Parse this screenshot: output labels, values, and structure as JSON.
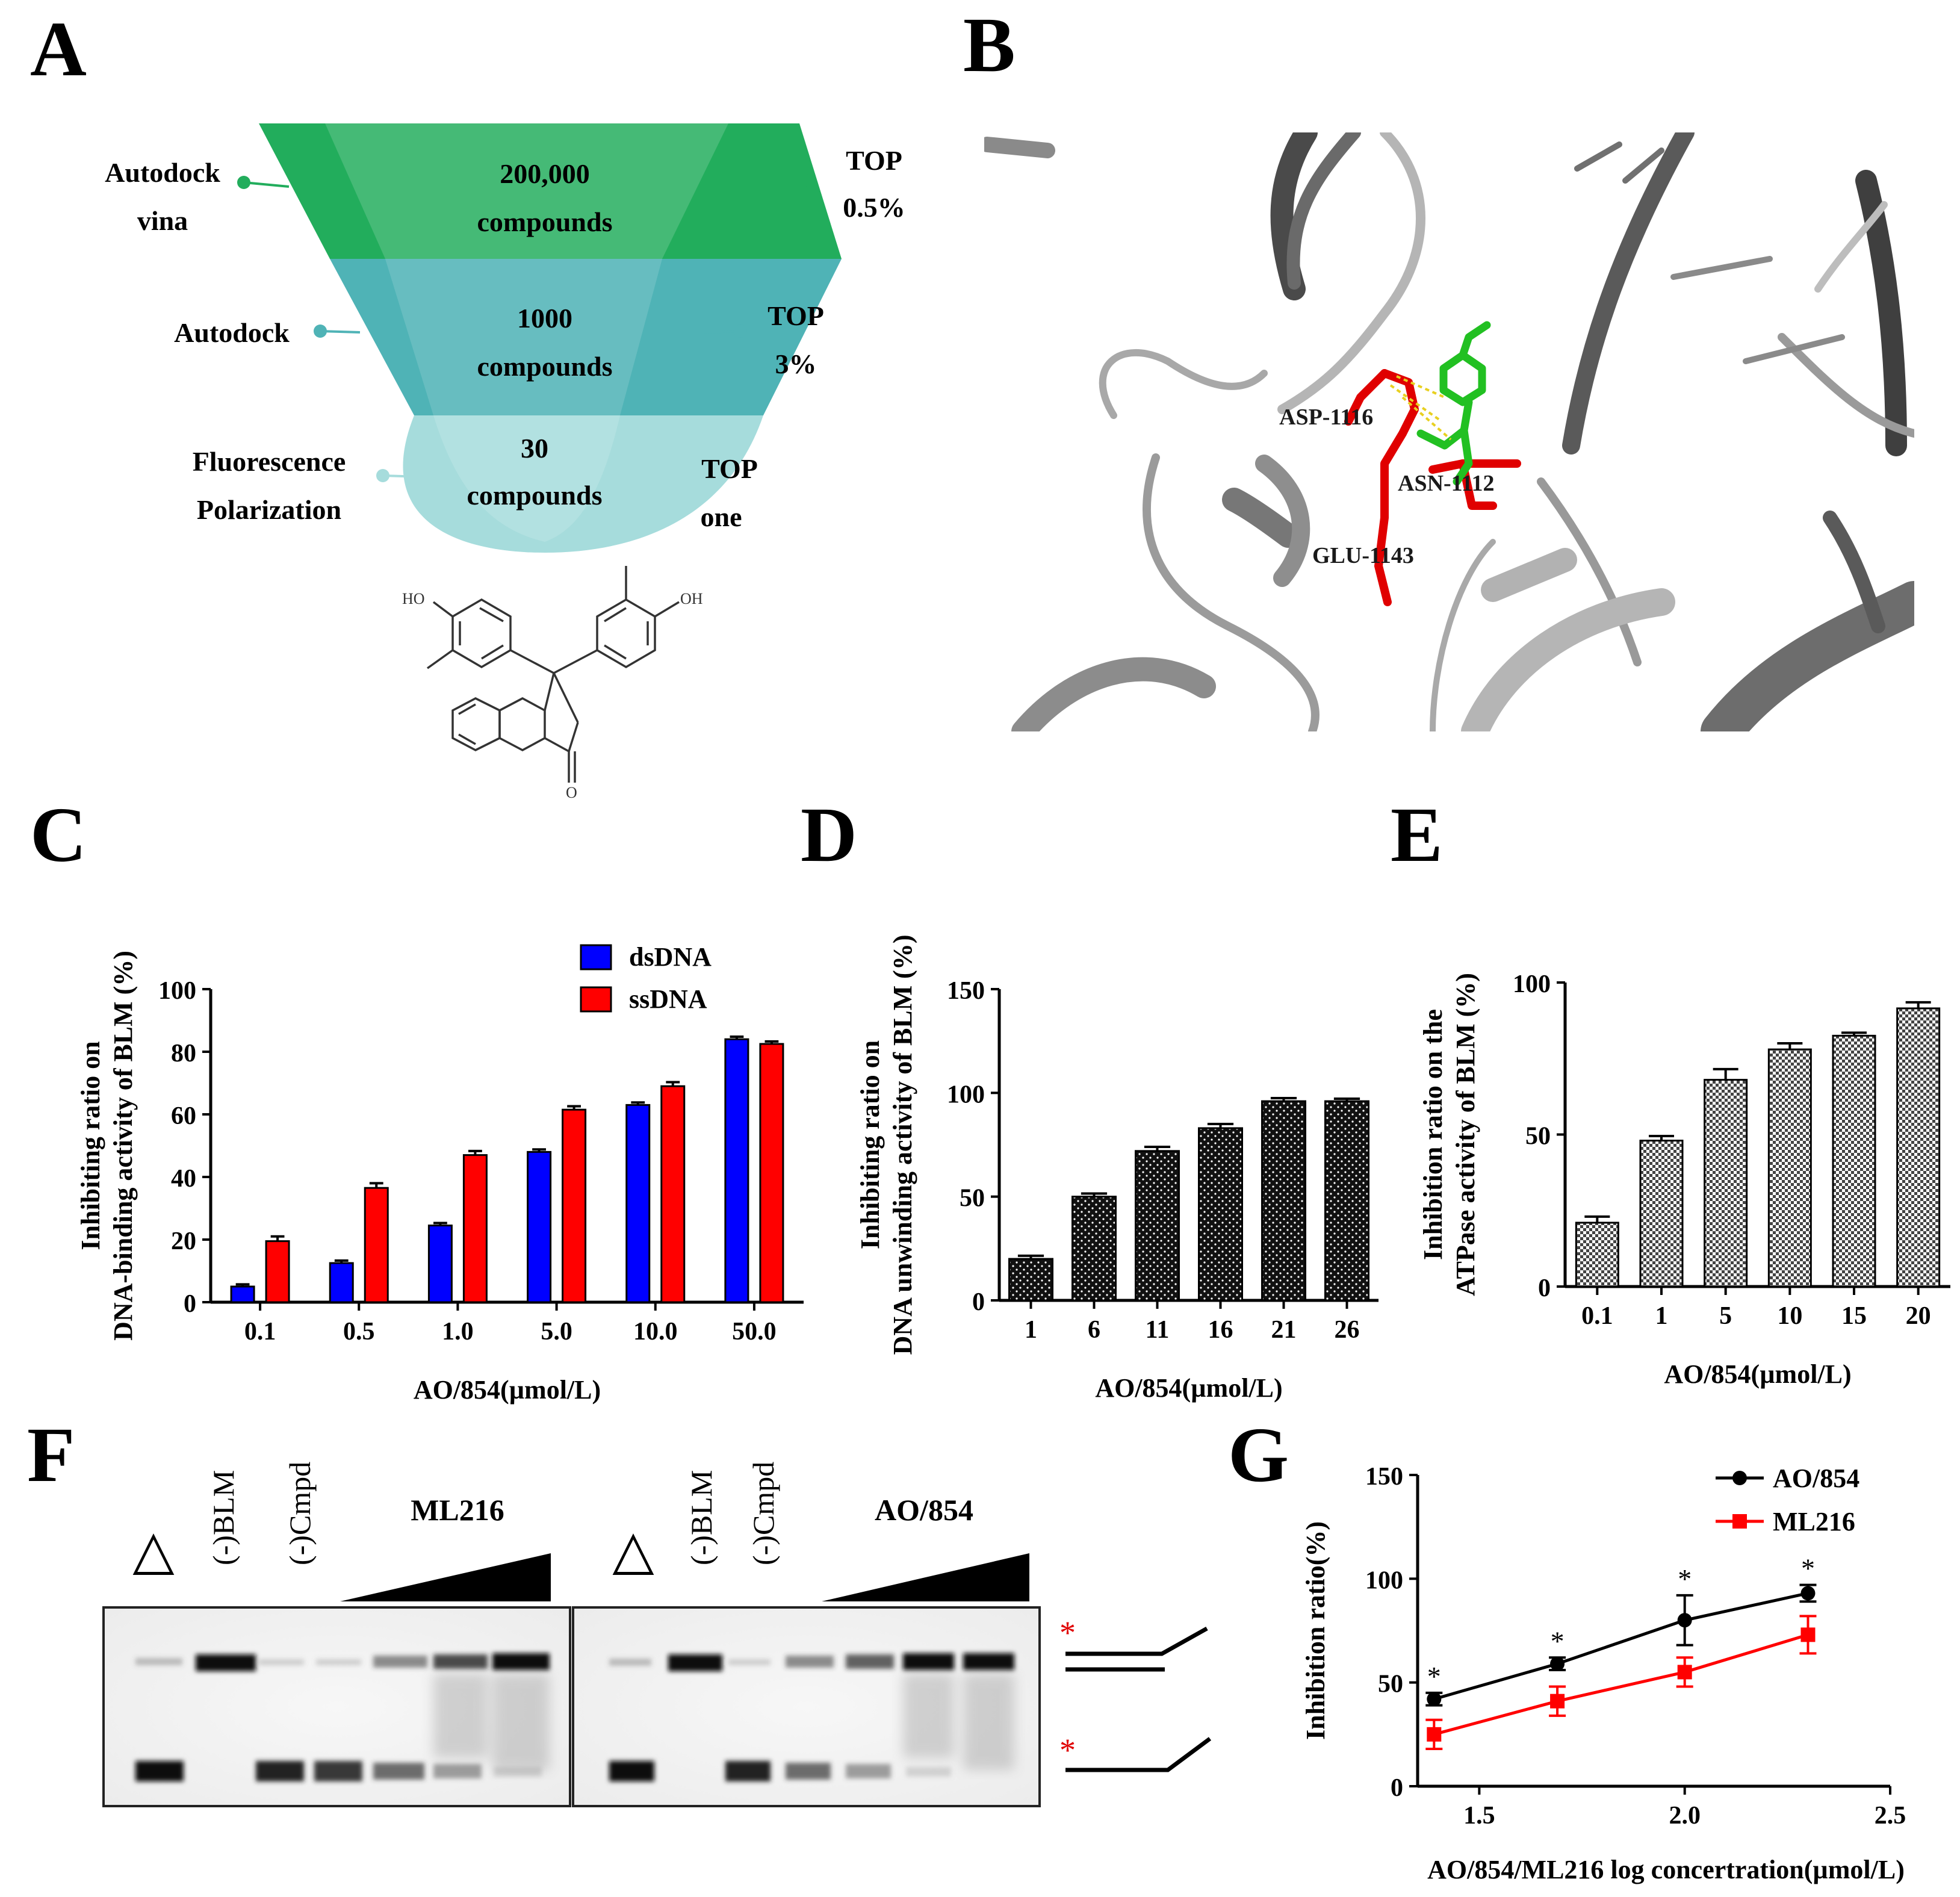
{
  "panels": {
    "A": {
      "letter": "A",
      "funnel": [
        {
          "count": "200,000",
          "unit": "compounds",
          "left_label": [
            "Autodock",
            "vina"
          ],
          "right_label": [
            "TOP",
            "0.5%"
          ],
          "color": "#22ad5c"
        },
        {
          "count": "1000",
          "unit": "compounds",
          "left_label": [
            "Autodock"
          ],
          "right_label": [
            "TOP",
            "3%"
          ],
          "color": "#4fb3b6"
        },
        {
          "count": "30",
          "unit": "compounds",
          "left_label": [
            "Fluorescence",
            "Polarization"
          ],
          "right_label": [
            "TOP",
            "one"
          ],
          "color": "#a6dcdc"
        }
      ],
      "structure_labels": {
        "oh_left": "HO",
        "oh_right": "OH",
        "carbonyl_o": "O"
      }
    },
    "B": {
      "letter": "B",
      "residues": [
        "ASP-1116",
        "ASN-1112",
        "GLU-1143"
      ],
      "colors": {
        "protein": "#a6a6a6",
        "residues": "#e00000",
        "ligand": "#22c022",
        "hbond": "#e8d020"
      }
    },
    "C": {
      "letter": "C"
    },
    "D": {
      "letter": "D"
    },
    "E": {
      "letter": "E"
    },
    "F": {
      "letter": "F",
      "gels": [
        {
          "lanes": [
            "△",
            "(-)BLM",
            "(-)Cmpd"
          ],
          "compound": "ML216"
        },
        {
          "lanes": [
            "△",
            "(-)BLM",
            "(-)Cmpd"
          ],
          "compound": "AO/854"
        }
      ],
      "markers": [
        "*",
        "*"
      ]
    },
    "G": {
      "letter": "G"
    }
  },
  "chart_data": [
    {
      "id": "C",
      "type": "bar",
      "categories": [
        "0.1",
        "0.5",
        "1.0",
        "5.0",
        "10.0",
        "50.0"
      ],
      "series": [
        {
          "name": "dsDNA",
          "color": "#0000ff",
          "values": [
            5,
            12.5,
            24.5,
            48,
            63,
            84
          ],
          "errors": [
            0.7,
            0.8,
            0.8,
            0.8,
            0.8,
            0.8
          ]
        },
        {
          "name": "ssDNA",
          "color": "#ff0000",
          "values": [
            19.5,
            36.5,
            47,
            61.5,
            69,
            82.5
          ],
          "errors": [
            1.5,
            1.5,
            1.3,
            1.1,
            1.3,
            0.8
          ]
        }
      ],
      "ylabel": [
        "Inhibiting ratio on",
        "DNA-binding activity of BLM (%)"
      ],
      "xlabel": "AO/854(µmol/L)",
      "ylim": [
        0,
        100
      ],
      "yticks": [
        0,
        20,
        40,
        60,
        80,
        100
      ],
      "legend": "top-right"
    },
    {
      "id": "D",
      "type": "bar",
      "categories": [
        "1",
        "6",
        "11",
        "16",
        "21",
        "26"
      ],
      "series": [
        {
          "name": "",
          "color": "#1a1a1a",
          "values": [
            20,
            50,
            72,
            83,
            96,
            96
          ],
          "errors": [
            1.5,
            1.5,
            2,
            2,
            1.5,
            1.2
          ]
        }
      ],
      "ylabel": [
        "Inhibiting ratio on",
        "DNA unwinding activity of BLM (%)"
      ],
      "xlabel": "AO/854(µmol/L)",
      "ylim": [
        0,
        150
      ],
      "yticks": [
        0,
        50,
        100,
        150
      ]
    },
    {
      "id": "E",
      "type": "bar",
      "categories": [
        "0.1",
        "1",
        "5",
        "10",
        "15",
        "20"
      ],
      "series": [
        {
          "name": "",
          "color": "#555555",
          "values": [
            21,
            48,
            68,
            78,
            82.5,
            91.5
          ],
          "errors": [
            2,
            1.5,
            3.5,
            2,
            1,
            2
          ]
        }
      ],
      "ylabel": [
        "Inhibition ratio on the",
        "ATPase activity of BLM (%)"
      ],
      "xlabel": "AO/854(µmol/L)",
      "ylim": [
        0,
        100
      ],
      "yticks": [
        0,
        50,
        100
      ]
    },
    {
      "id": "G",
      "type": "line",
      "series": [
        {
          "name": "AO/854",
          "color": "#000000",
          "x": [
            1.39,
            1.69,
            2.0,
            2.3
          ],
          "y": [
            42,
            59,
            80,
            93
          ],
          "errors": [
            3,
            3,
            12,
            4
          ],
          "marker": "circle"
        },
        {
          "name": "ML216",
          "color": "#ff0000",
          "x": [
            1.39,
            1.69,
            2.0,
            2.3
          ],
          "y": [
            25,
            41,
            55,
            73
          ],
          "errors": [
            7,
            7,
            7,
            9
          ],
          "marker": "square"
        }
      ],
      "annotations": [
        "*",
        "*",
        "*",
        "*"
      ],
      "ylabel": "Inhibition ratio(%)",
      "xlabel": "AO/854/ML216 log concertration(µmol/L)",
      "xlim": [
        1.35,
        2.5
      ],
      "ylim": [
        0,
        150
      ],
      "xticks": [
        "1.5",
        "2.0",
        "2.5"
      ],
      "yticks": [
        0,
        50,
        100,
        150
      ],
      "legend": "top-right"
    }
  ]
}
